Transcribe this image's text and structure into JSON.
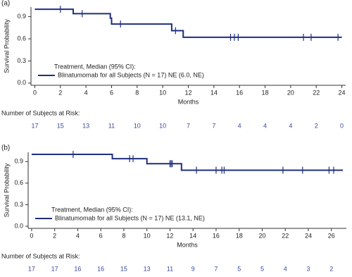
{
  "chart_data": [
    {
      "type": "step",
      "panel_label": "(a)",
      "y_label": "Survival Probability",
      "x_label": "Months",
      "legend_title": "Treatment, Median (95% CI):",
      "xlim": [
        -0.3,
        24.3
      ],
      "xticks": [
        0,
        2,
        4,
        6,
        8,
        10,
        12,
        14,
        16,
        18,
        20,
        22,
        24
      ],
      "ylim": [
        -0.03,
        1.03
      ],
      "yticks": [
        {
          "value": 0,
          "label": "0.0"
        },
        0.3,
        0.6,
        0.9
      ],
      "series": [
        {
          "name": "Blinatumomab for all Subjects (N = 17) NE (6.0, NE)",
          "color": "#1f2f7e",
          "x": [
            0,
            3,
            5.9,
            6,
            10.7,
            11.6,
            24
          ],
          "values": [
            1.0,
            0.94,
            0.88,
            0.8,
            0.71,
            0.62,
            0.62
          ],
          "censor_x": [
            2,
            3.7,
            6.7,
            11,
            15.3,
            15.6,
            15.9,
            21,
            21.6,
            23.7
          ],
          "censor_values": [
            1.0,
            0.94,
            0.8,
            0.71,
            0.62,
            0.62,
            0.62,
            0.62,
            0.62,
            0.62
          ]
        }
      ],
      "risk_title": "Number of Subjects at Risk:",
      "risk_values": [
        17,
        15,
        13,
        11,
        10,
        10,
        7,
        7,
        4,
        4,
        4,
        2,
        0
      ]
    },
    {
      "type": "step",
      "panel_label": "(b)",
      "y_label": "Survival Probability",
      "x_label": "Months",
      "legend_title": "Treatment, Median (95% CI):",
      "xlim": [
        -0.3,
        27.3
      ],
      "xticks": [
        0,
        2,
        4,
        6,
        8,
        10,
        12,
        14,
        16,
        18,
        20,
        22,
        24,
        26
      ],
      "ylim": [
        -0.03,
        1.03
      ],
      "yticks": [
        {
          "value": 0,
          "label": "0.0"
        },
        0.3,
        0.6,
        0.9
      ],
      "series": [
        {
          "name": "Blinatumomab for all Subjects (N = 17) NE (13.1, NE)",
          "color": "#1f2f7e",
          "x": [
            0,
            7,
            10,
            13,
            27
          ],
          "values": [
            1.0,
            0.94,
            0.87,
            0.78,
            0.78
          ],
          "censor_x": [
            3.6,
            8.5,
            8.8,
            12,
            12.1,
            12.2,
            14.3,
            16,
            16.5,
            16.7,
            21.8,
            23.5,
            25.8,
            26.2
          ],
          "censor_values": [
            1.0,
            0.94,
            0.94,
            0.87,
            0.87,
            0.87,
            0.78,
            0.78,
            0.78,
            0.78,
            0.78,
            0.78,
            0.78,
            0.78
          ]
        }
      ],
      "risk_title": "Number of Subjects at Risk:",
      "risk_values": [
        17,
        17,
        16,
        16,
        15,
        13,
        11,
        9,
        7,
        5,
        5,
        4,
        3,
        2
      ]
    }
  ]
}
